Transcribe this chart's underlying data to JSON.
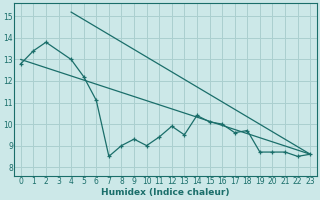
{
  "xlabel": "Humidex (Indice chaleur)",
  "bg_color": "#cce8e8",
  "grid_color": "#aacfcf",
  "line_color": "#1a6e6a",
  "xlim": [
    -0.5,
    23.5
  ],
  "ylim": [
    7.6,
    15.6
  ],
  "xticks": [
    0,
    1,
    2,
    3,
    4,
    5,
    6,
    7,
    8,
    9,
    10,
    11,
    12,
    13,
    14,
    15,
    16,
    17,
    18,
    19,
    20,
    21,
    22,
    23
  ],
  "yticks": [
    8,
    9,
    10,
    11,
    12,
    13,
    14,
    15
  ],
  "data_x": [
    0,
    1,
    2,
    4,
    5,
    6,
    7,
    8,
    9,
    10,
    11,
    12,
    13,
    14,
    15,
    16,
    17,
    18,
    19,
    20,
    21,
    22,
    23
  ],
  "data_y": [
    12.8,
    13.4,
    13.8,
    13.0,
    12.2,
    11.1,
    8.5,
    9.0,
    9.3,
    9.0,
    9.4,
    9.9,
    9.5,
    10.4,
    10.1,
    10.0,
    9.6,
    9.7,
    8.7,
    8.7,
    8.7,
    8.5,
    8.6
  ],
  "trend1_x": [
    0,
    23
  ],
  "trend1_y": [
    13.0,
    8.6
  ],
  "trend2_x": [
    4,
    23
  ],
  "trend2_y": [
    15.2,
    8.6
  ]
}
